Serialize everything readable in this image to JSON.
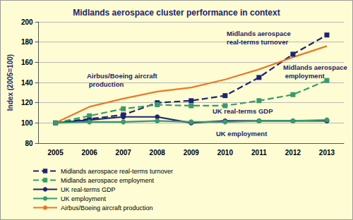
{
  "chart_data": {
    "type": "line",
    "title": "Midlands aerospace cluster performance in context",
    "y_label": "Index (2005=100)",
    "categories": [
      "2005",
      "2006",
      "2007",
      "2008",
      "2009",
      "2010",
      "2011",
      "2012",
      "2013"
    ],
    "ylim": [
      80,
      200
    ],
    "yticks": [
      80,
      100,
      120,
      140,
      160,
      180,
      200
    ],
    "grid": true,
    "legend": "bottom-left",
    "series": [
      {
        "name": "Midlands aerospace real-terms turnover",
        "color": "#1f2470",
        "marker": "square",
        "line_style": "dashed",
        "values": [
          100,
          104,
          108,
          120,
          122,
          127,
          145,
          168,
          187
        ]
      },
      {
        "name": "Midlands aerospace employment",
        "color": "#3a9a6e",
        "marker": "square",
        "line_style": "dashed",
        "values": [
          100,
          107,
          114,
          118,
          117,
          117,
          122,
          128,
          142
        ]
      },
      {
        "name": "UK real-terms GDP",
        "color": "#1f2470",
        "marker": "circle",
        "line_style": "solid",
        "values": [
          100,
          103,
          106,
          106,
          100,
          102,
          102,
          102,
          102
        ]
      },
      {
        "name": "UK employment",
        "color": "#3a9a6e",
        "marker": "circle",
        "line_style": "solid",
        "values": [
          100,
          101,
          101,
          102,
          101,
          101,
          102,
          102,
          103
        ]
      },
      {
        "name": "Airbus/Boeing aircraft production",
        "color": "#e8792a",
        "marker": "none",
        "line_style": "solid",
        "values": [
          100,
          116,
          124,
          131,
          135,
          143,
          153,
          165,
          176
        ]
      }
    ],
    "annotations": [
      "Midlands aerospace real-terms turnover",
      "Midlands aerospace employment",
      "Airbus/Boeing aircraft production",
      "UK real-terms GDP",
      "UK employment"
    ]
  }
}
